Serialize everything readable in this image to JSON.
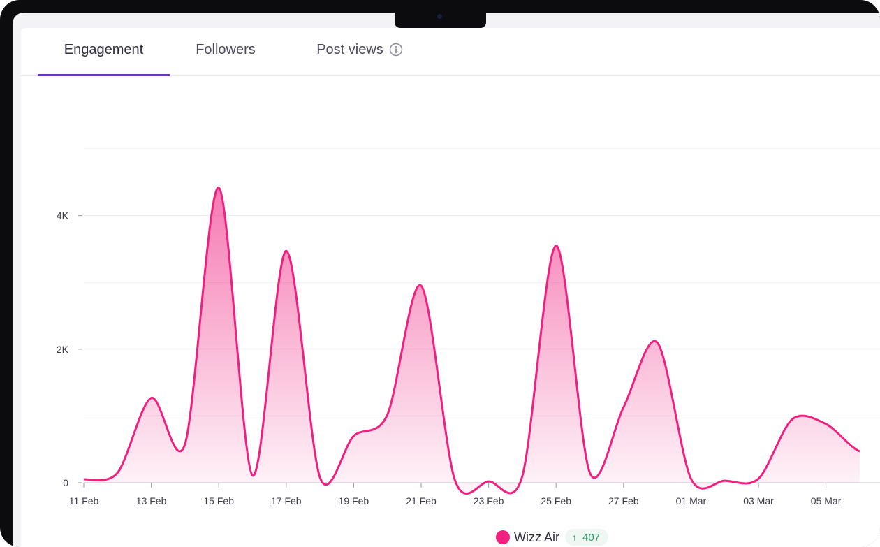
{
  "tabs": [
    {
      "label": "Engagement",
      "active": true
    },
    {
      "label": "Followers",
      "active": false
    },
    {
      "label": "Post views",
      "active": false,
      "icon": "info-icon"
    }
  ],
  "colors": {
    "series": "#f0207f",
    "tab_active_underline": "#6b3cc2",
    "badge_text": "#2e9b6a",
    "grid": "#ebebf0"
  },
  "legend": {
    "label": "Wizz Air",
    "change_arrow": "↑",
    "change_value": "407"
  },
  "chart_data": {
    "type": "area",
    "title": "",
    "xlabel": "",
    "ylabel": "",
    "x_tick_labels": [
      "11 Feb",
      "13 Feb",
      "15 Feb",
      "17 Feb",
      "19 Feb",
      "21 Feb",
      "23 Feb",
      "25 Feb",
      "27 Feb",
      "01 Mar",
      "03 Mar",
      "05 Mar"
    ],
    "y_tick_labels": [
      "0",
      "2K",
      "4K"
    ],
    "ylim": [
      0,
      5000
    ],
    "grid": true,
    "legend_position": "bottom",
    "series": [
      {
        "name": "Wizz Air",
        "x": [
          "11 Feb",
          "12 Feb",
          "13 Feb",
          "14 Feb",
          "15 Feb",
          "16 Feb",
          "17 Feb",
          "18 Feb",
          "19 Feb",
          "20 Feb",
          "21 Feb",
          "22 Feb",
          "23 Feb",
          "24 Feb",
          "25 Feb",
          "26 Feb",
          "27 Feb",
          "28 Feb",
          "01 Mar",
          "02 Mar",
          "03 Mar",
          "04 Mar",
          "05 Mar",
          "06 Mar"
        ],
        "values": [
          50,
          150,
          1270,
          580,
          4420,
          110,
          3470,
          80,
          700,
          1020,
          2950,
          40,
          20,
          100,
          3550,
          150,
          1130,
          2100,
          60,
          30,
          60,
          950,
          880,
          470
        ]
      }
    ]
  }
}
